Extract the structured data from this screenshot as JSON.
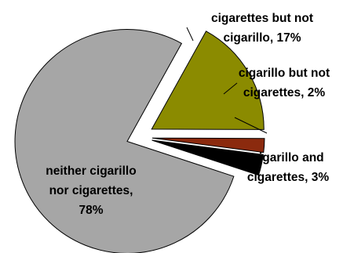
{
  "chart_data": {
    "type": "pie",
    "title": "",
    "legend": "none",
    "slices": [
      {
        "label_lines": [
          "cigarettes but not",
          "cigarillo, 17%"
        ],
        "value": 17,
        "color": "#8b8b00"
      },
      {
        "label_lines": [
          "cigarillo but not",
          "cigarettes, 2%"
        ],
        "value": 2,
        "color": "#8b2a0e"
      },
      {
        "label_lines": [
          "cigarillo and",
          "cigarettes, 3%"
        ],
        "value": 3,
        "color": "#000000"
      },
      {
        "label_lines": [
          "neither cigarillo",
          "nor cigarettes,",
          "78%"
        ],
        "value": 78,
        "color": "#a6a6a6"
      }
    ]
  }
}
